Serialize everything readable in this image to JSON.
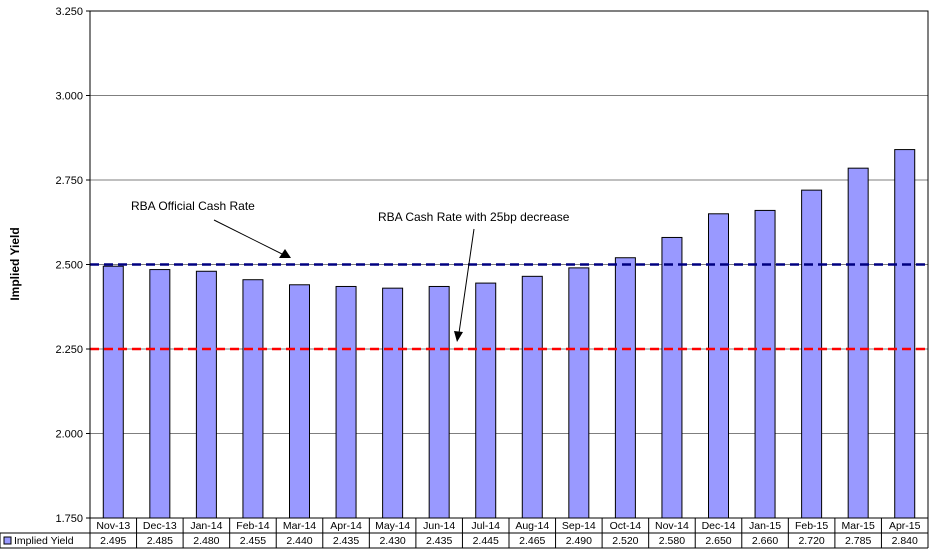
{
  "chart_data": {
    "type": "bar",
    "ylabel": "Implied Yield",
    "ylim": [
      1.75,
      3.25
    ],
    "yticks": [
      "1.750",
      "2.000",
      "2.250",
      "2.500",
      "2.750",
      "3.000",
      "3.250"
    ],
    "ytick_values": [
      1.75,
      2.0,
      2.25,
      2.5,
      2.75,
      3.0,
      3.25
    ],
    "grid": true,
    "categories": [
      "Nov-13",
      "Dec-13",
      "Jan-14",
      "Feb-14",
      "Mar-14",
      "Apr-14",
      "May-14",
      "Jun-14",
      "Jul-14",
      "Aug-14",
      "Sep-14",
      "Oct-14",
      "Nov-14",
      "Dec-14",
      "Jan-15",
      "Feb-15",
      "Mar-15",
      "Apr-15"
    ],
    "series": [
      {
        "name": "Implied Yield",
        "color": "#9999ff",
        "values": [
          2.495,
          2.485,
          2.48,
          2.455,
          2.44,
          2.435,
          2.43,
          2.435,
          2.445,
          2.465,
          2.49,
          2.52,
          2.58,
          2.65,
          2.66,
          2.72,
          2.785,
          2.84
        ],
        "labels": [
          "2.495",
          "2.485",
          "2.480",
          "2.455",
          "2.440",
          "2.435",
          "2.430",
          "2.435",
          "2.445",
          "2.465",
          "2.490",
          "2.520",
          "2.580",
          "2.650",
          "2.660",
          "2.720",
          "2.785",
          "2.840"
        ]
      }
    ],
    "reference_lines": [
      {
        "value": 2.5,
        "color": "#000080",
        "style": "dashed"
      },
      {
        "value": 2.25,
        "color": "#ff0000",
        "style": "dashed"
      }
    ],
    "annotations": [
      {
        "text": "RBA Official Cash Rate",
        "points_to": 2.5
      },
      {
        "text": "RBA Cash Rate with 25bp decrease",
        "points_to": 2.25
      }
    ],
    "data_table": true
  }
}
